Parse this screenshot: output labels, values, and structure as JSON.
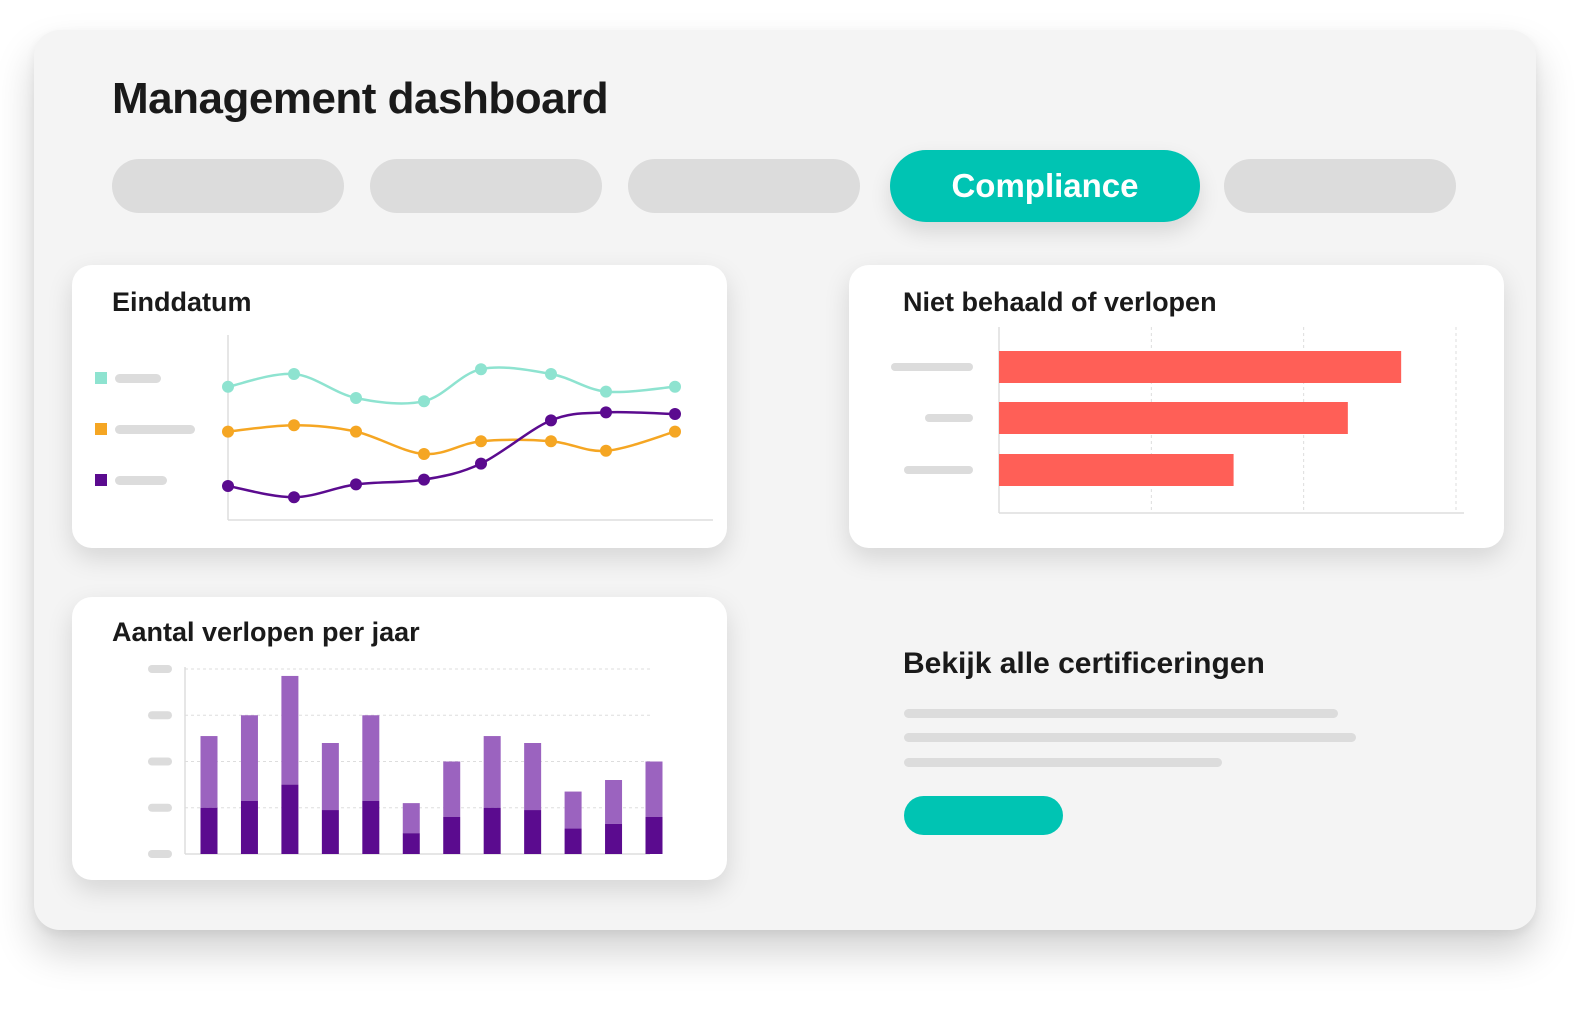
{
  "header": {
    "title": "Management dashboard"
  },
  "tabs": [
    {
      "label": ""
    },
    {
      "label": ""
    },
    {
      "label": ""
    },
    {
      "label": "Compliance",
      "active": true
    },
    {
      "label": ""
    }
  ],
  "colors": {
    "accent": "#00c4b3",
    "series_teal": "#8ee3d0",
    "series_orange": "#f5a623",
    "series_purple": "#5b0b8f",
    "bar_red": "#ff5f57",
    "bar_dark": "#5b0b8f",
    "bar_light": "#9b63bf"
  },
  "cards": {
    "einddatum": {
      "title": "Einddatum"
    },
    "niet_behaald": {
      "title": "Niet behaald of verlopen"
    },
    "aantal_verlopen": {
      "title": "Aantal verlopen per jaar"
    },
    "certificeringen": {
      "title": "Bekijk alle certificeringen"
    }
  },
  "chart_data": [
    {
      "id": "einddatum",
      "type": "line",
      "title": "Einddatum",
      "x": [
        1,
        2,
        3,
        4,
        5,
        6,
        7,
        8
      ],
      "ylim": [
        0,
        100
      ],
      "grid": false,
      "legend": "left",
      "series": [
        {
          "color": "#8ee3d0",
          "values": [
            77,
            85,
            70,
            68,
            88,
            85,
            74,
            77
          ]
        },
        {
          "color": "#f5a623",
          "values": [
            49,
            53,
            49,
            35,
            43,
            43,
            37,
            49
          ]
        },
        {
          "color": "#5b0b8f",
          "values": [
            15,
            8,
            16,
            19,
            29,
            56,
            61,
            60
          ]
        }
      ]
    },
    {
      "id": "niet_behaald",
      "type": "bar",
      "orientation": "horizontal",
      "title": "Niet behaald of verlopen",
      "categories": [
        "",
        "",
        ""
      ],
      "values": [
        2.64,
        2.29,
        1.54
      ],
      "xlim": [
        0,
        3
      ],
      "grid": true
    },
    {
      "id": "aantal_verlopen",
      "type": "bar",
      "stacked": true,
      "title": "Aantal verlopen per jaar",
      "categories": [
        "",
        "",
        "",
        "",
        "",
        "",
        "",
        "",
        "",
        "",
        "",
        ""
      ],
      "ylim": [
        0,
        4
      ],
      "grid": true,
      "series": [
        {
          "color": "#5b0b8f",
          "values": [
            1.0,
            1.15,
            1.5,
            0.95,
            1.15,
            0.45,
            0.8,
            1.0,
            0.95,
            0.55,
            0.65,
            0.8
          ]
        },
        {
          "color": "#9b63bf",
          "values": [
            1.55,
            1.85,
            2.35,
            1.45,
            1.85,
            0.65,
            1.2,
            1.55,
            1.45,
            0.8,
            0.95,
            1.2
          ]
        }
      ]
    }
  ]
}
